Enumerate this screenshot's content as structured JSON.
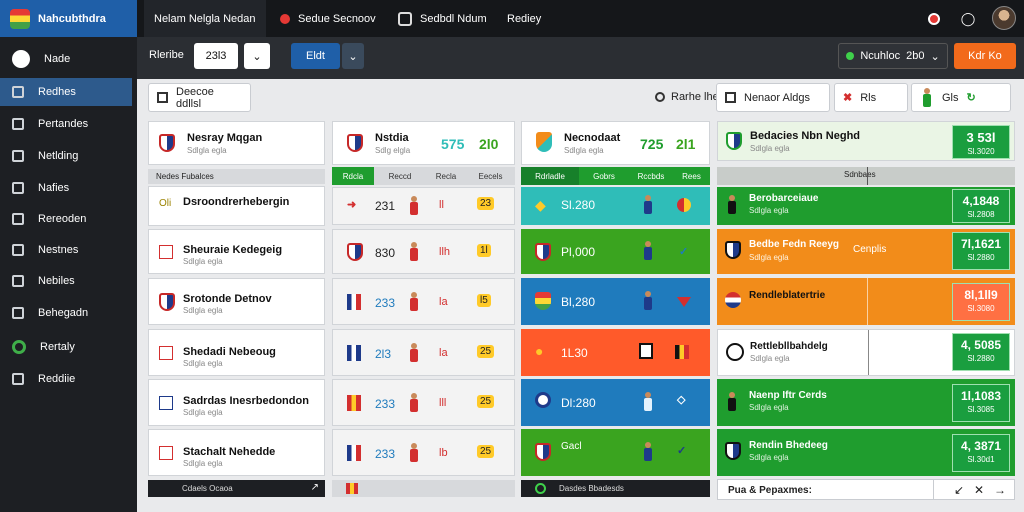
{
  "app": {
    "title": "Nahcubthdra"
  },
  "tabs": [
    {
      "label": "Nelam Nelgla Nedan"
    },
    {
      "label": "Sedue Secnoov"
    },
    {
      "label": "Sedbdl Ndum"
    },
    {
      "label": "Rediey"
    }
  ],
  "sidebar": {
    "items": [
      {
        "label": "Nade",
        "icon": "home-icon"
      },
      {
        "label": "Redhes",
        "icon": "list-icon"
      },
      {
        "label": "Pertandes",
        "icon": "table-icon"
      },
      {
        "label": "Netlding",
        "icon": "chart-icon"
      },
      {
        "label": "Nafies",
        "icon": "stats-icon"
      },
      {
        "label": "Rereoden",
        "icon": "calendar-icon"
      },
      {
        "label": "Nestnes",
        "icon": "grid-icon"
      },
      {
        "label": "Nebiles",
        "icon": "people-icon"
      },
      {
        "label": "Behegadn",
        "icon": "star-icon"
      },
      {
        "label": "Rertaly",
        "icon": "circle-icon"
      },
      {
        "label": "Reddiie",
        "icon": "settings-icon"
      }
    ]
  },
  "toolbar": {
    "label": "Rleribe",
    "select_value": "23l3",
    "blue_button": "Eldt",
    "status_label": "Ncuhloc",
    "status_value": "2b0",
    "orange_button": "Kdr Ko"
  },
  "filters": {
    "left_button": "Deecoe ddllsl",
    "right_label": "Rarhe lhe",
    "filter1": "Nenaor Aldgs",
    "filter2_label": "Rls",
    "filter3": "Gls"
  },
  "col1": {
    "header": {
      "name": "Nesray Mqgan",
      "sub": "Sdlgla egla"
    },
    "subheader": "Nedes Fubalces",
    "rows": [
      {
        "name": "Dsroondrerhebergin",
        "sub": "",
        "tag": "Oli"
      },
      {
        "name": "Sheuraie Kedegeig",
        "sub": "Sdlgla egla"
      },
      {
        "name": "Srotonde Detnov",
        "sub": "Sdlgla egla"
      },
      {
        "name": "Shedadi Nebeoug",
        "sub": "Sdlgla egla"
      },
      {
        "name": "Sadrdas Inesrbedondon",
        "sub": "Sdlgla egla"
      },
      {
        "name": "Stachalt Nehedde",
        "sub": "Sdlgla egla"
      }
    ],
    "footer": "Cdaels Ocaoa"
  },
  "col2": {
    "header": {
      "name": "Nstdia",
      "sub": "Sdlg elgla",
      "score1": "575",
      "score2": "2l0"
    },
    "colheaders": [
      "Rdcla",
      "Reccd",
      "Recla",
      "Eecels"
    ],
    "rows": [
      {
        "value": "231",
        "num": "ll",
        "badge": "23"
      },
      {
        "value": "830",
        "num": "llh",
        "badge": "1l"
      },
      {
        "value": "233",
        "num": "la",
        "badge": "l5"
      },
      {
        "value": "2l3",
        "num": "la",
        "badge": "25"
      },
      {
        "value": "233",
        "num": "lll",
        "badge": "25"
      },
      {
        "value": "233",
        "num": "lb",
        "badge": "25"
      }
    ]
  },
  "col3": {
    "header": {
      "name": "Necnodaat",
      "sub": "Sdlgla egla",
      "score1": "725",
      "score2": "2l1"
    },
    "colheaders": [
      "Rdrladle",
      "Gobrs",
      "Rccbds",
      "Rees"
    ],
    "rows": [
      {
        "value": "Sl.280",
        "tint": "#2fbdb8"
      },
      {
        "value": "Pl,000",
        "tint": "#3aa41f"
      },
      {
        "value": "Bl,280",
        "tint": "#1f7bbd"
      },
      {
        "value": "1L30",
        "tint": "#ff5a2a"
      },
      {
        "value": "Dl:280",
        "tint": "#1f7bbd"
      },
      {
        "value": "Gacl",
        "tint": "#3aa41f"
      }
    ],
    "footer": "Dasdes Bbadesds"
  },
  "col4": {
    "header": {
      "name": "Bedacies Nbn Neghd",
      "sub": "Sdlgla egla",
      "badge_big": "3 53l",
      "badge_small": "Sl.3020"
    },
    "subheader": "Sdnbaes",
    "rows": [
      {
        "name": "Berobarceiaue",
        "sub": "Sdlgla egla",
        "big": "4,1848",
        "small": "Sl.2808",
        "tint": "#1f9d2e",
        "extra": ""
      },
      {
        "name": "Bedbe Fedn Reeyg",
        "sub": "Sdlgla egla",
        "big": "7l,1621",
        "small": "Sl.2880",
        "tint": "#f28c1a",
        "extra": "Cenplis"
      },
      {
        "name": "Rendleblatertrie",
        "sub": "",
        "big": "8l,1ll9",
        "small": "Sl.3080",
        "tint": "#f28c1a",
        "extra": ""
      },
      {
        "name": "Rettlebllbahdelg",
        "sub": "Sdlgla egla",
        "big": "4, 5085",
        "small": "Sl.2880",
        "tint": "#ffffff",
        "extra": ""
      },
      {
        "name": "Naenp Iftr Cerds",
        "sub": "Sdlgla egla",
        "big": "1l,1083",
        "small": "Sl.3085",
        "tint": "#1f9d2e",
        "extra": ""
      },
      {
        "name": "Rendin Bhedeeg",
        "sub": "Sdlgla egla",
        "big": "4, 3871",
        "small": "Sl.30d1",
        "tint": "#1f9d2e",
        "extra": ""
      }
    ],
    "footer": "Pua & Pepaxmes:"
  },
  "colors": {
    "accent": "#1f5fa8",
    "green": "#1a9e3f",
    "orange": "#f28c1a",
    "teal": "#2fbdb8"
  }
}
